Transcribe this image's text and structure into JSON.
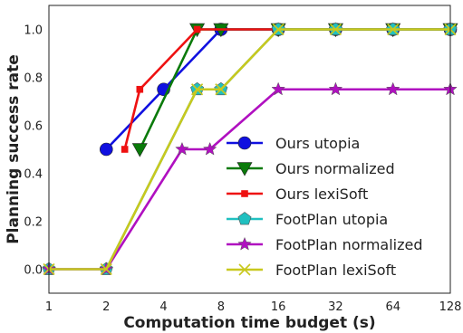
{
  "chart_data": {
    "type": "line",
    "xlabel": "Computation time budget (s)",
    "ylabel": "Planning success rate",
    "x_scale": "log2",
    "xlim": [
      1,
      128
    ],
    "ylim": [
      -0.1,
      1.1
    ],
    "x_ticks": [
      1,
      2,
      4,
      8,
      16,
      32,
      64,
      128
    ],
    "x_tick_labels": [
      "1",
      "2",
      "4",
      "8",
      "16",
      "32",
      "64",
      "128"
    ],
    "y_ticks": [
      0.0,
      0.2,
      0.4,
      0.6,
      0.8,
      1.0
    ],
    "y_tick_labels": [
      "0.0",
      "0.2",
      "0.4",
      "0.6",
      "0.8",
      "1.0"
    ],
    "grid": false,
    "legend_position": "bottom-right",
    "series": [
      {
        "name": "Ours utopia",
        "color": "#1010e0",
        "marker": "circle",
        "x": [
          2,
          4,
          8,
          16,
          32,
          64,
          128
        ],
        "y": [
          0.5,
          0.75,
          1.0,
          1.0,
          1.0,
          1.0,
          1.0
        ]
      },
      {
        "name": "Ours normalized",
        "color": "#0a7a0a",
        "marker": "triangle-down",
        "x": [
          3,
          6,
          8,
          16,
          32,
          64,
          128
        ],
        "y": [
          0.5,
          1.0,
          1.0,
          1.0,
          1.0,
          1.0,
          1.0
        ]
      },
      {
        "name": "Ours lexiSoft",
        "color": "#ee1111",
        "marker": "square",
        "x": [
          2.5,
          3,
          6,
          16,
          32,
          64,
          128
        ],
        "y": [
          0.5,
          0.75,
          1.0,
          1.0,
          1.0,
          1.0,
          1.0
        ]
      },
      {
        "name": "FootPlan utopia",
        "color": "#20c0c0",
        "marker": "pentagon",
        "x": [
          1,
          2,
          6,
          8,
          16,
          32,
          64,
          128
        ],
        "y": [
          0.0,
          0.0,
          0.75,
          0.75,
          1.0,
          1.0,
          1.0,
          1.0
        ]
      },
      {
        "name": "FootPlan normalized",
        "color": "#b010c0",
        "marker": "star",
        "x": [
          1,
          2,
          5,
          7,
          16,
          32,
          64,
          128
        ],
        "y": [
          0.0,
          0.0,
          0.5,
          0.5,
          0.75,
          0.75,
          0.75,
          0.75
        ]
      },
      {
        "name": "FootPlan lexiSoft",
        "color": "#c8c81e",
        "marker": "x",
        "x": [
          1,
          2,
          6,
          8,
          16,
          32,
          64,
          128
        ],
        "y": [
          0.0,
          0.0,
          0.75,
          0.75,
          1.0,
          1.0,
          1.0,
          1.0
        ]
      }
    ]
  }
}
